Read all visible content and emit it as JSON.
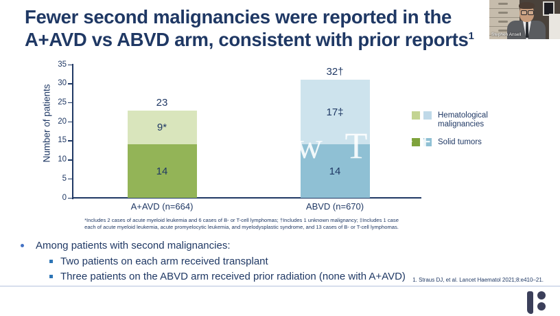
{
  "colors": {
    "navy": "#1f3864",
    "bullet_dot": "#4472c4",
    "bullet_square": "#2e75b6",
    "divider": "#b5c2dd",
    "logo": "#3b3f5a"
  },
  "slide": {
    "title": {
      "line1": "Fewer second malignancies were reported in the",
      "line2": "A+AVD vs ABVD arm, consistent with prior reports",
      "superscript": "1"
    },
    "footnote": {
      "line1": "*Includes 2 cases of acute myeloid leukemia and 6 cases of B- or T-cell lymphomas; †Includes 1 unknown malignancy; ‡Includes 1 case",
      "line2": "each of acute myeloid leukemia, acute promyelocytic leukemia, and myelodysplastic syndrome, and 13 cases of B- or T-cell lymphomas."
    },
    "bullets": {
      "heading": "Among patients with second malignancies:",
      "items": [
        {
          "text": "Two patients on each arm received transplant"
        },
        {
          "text": "Three patients on the ABVD arm received prior radiation (none with A+AVD)"
        }
      ]
    },
    "reference": "1. Straus DJ, et al. Lancet Haematol 2021;8:e410–21."
  },
  "watermark": {
    "text": "New Text"
  },
  "webcam": {
    "name_label": "Stephen Ansell"
  },
  "chart_data": {
    "type": "bar",
    "stacked": true,
    "title": "",
    "xlabel": "",
    "ylabel": "Number of patients",
    "ylim": [
      0,
      35
    ],
    "yticks": [
      0,
      5,
      10,
      15,
      20,
      25,
      30,
      35
    ],
    "grid": false,
    "categories": [
      "A+AVD (n=664)",
      "ABVD (n=670)"
    ],
    "series": [
      {
        "name": "Solid tumors",
        "values": [
          14,
          14
        ],
        "labels": [
          "14",
          "14"
        ],
        "colors": [
          "#93b457",
          "#8fc0d4"
        ]
      },
      {
        "name": "Hematological malignancies",
        "values": [
          9,
          17
        ],
        "labels": [
          "9*",
          "17‡"
        ],
        "colors": [
          "#d9e5bc",
          "#cde3ed"
        ]
      }
    ],
    "totals": [
      23,
      32
    ],
    "total_labels": [
      "23",
      "32†"
    ],
    "legend_position": "right",
    "legend": [
      {
        "label": "Hematological malignancies",
        "swatches": [
          "#c3d492",
          "#bfd9e8"
        ]
      },
      {
        "label": "Solid tumors",
        "swatches": [
          "#7fa33c",
          "#8fc0d4"
        ]
      }
    ]
  }
}
